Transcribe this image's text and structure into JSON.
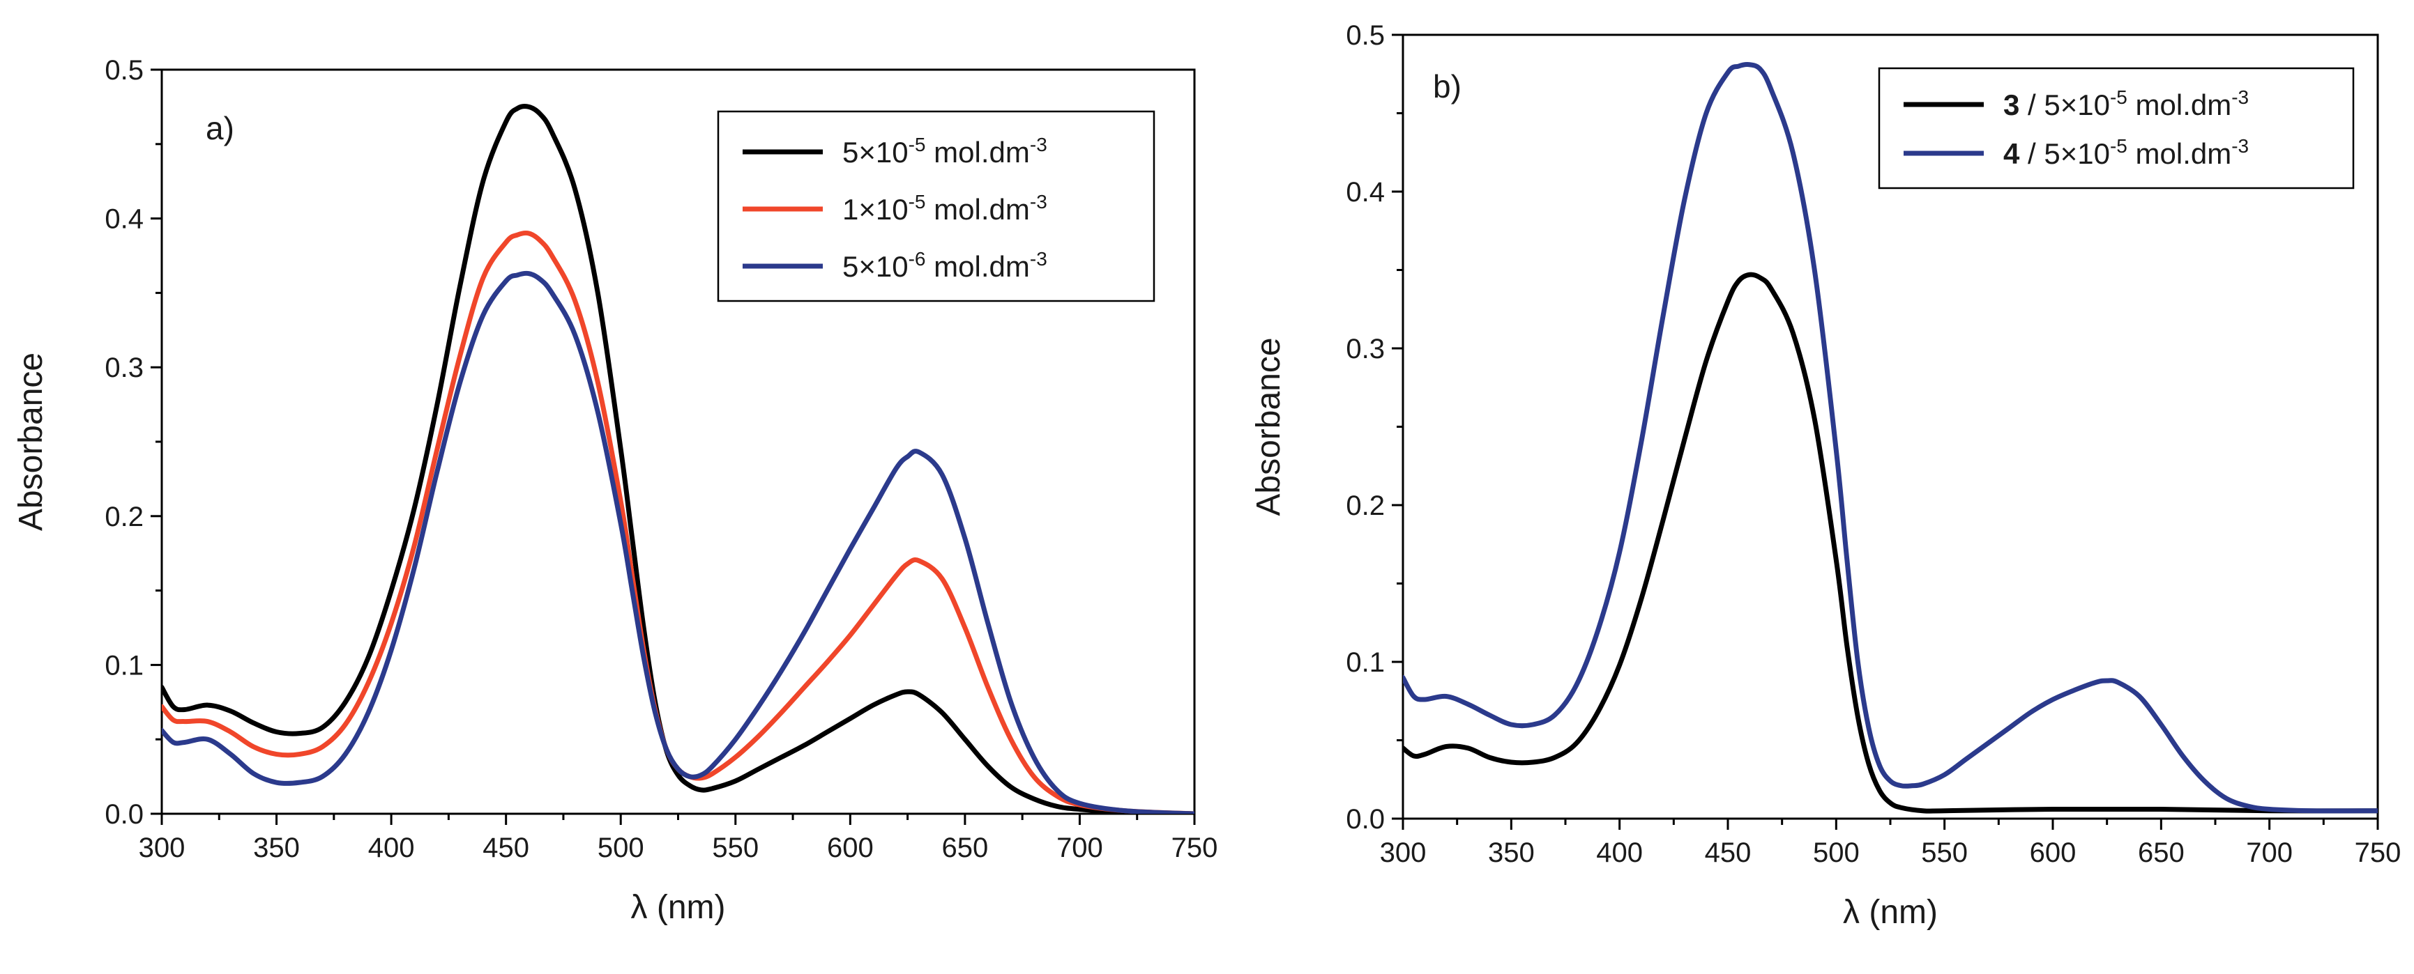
{
  "chart_data": [
    {
      "type": "line",
      "panel_label": "a)",
      "xlabel": "λ (nm)",
      "ylabel": "Absorbance",
      "xlim": [
        300,
        750
      ],
      "ylim": [
        0,
        0.5
      ],
      "xticks": [
        300,
        350,
        400,
        450,
        500,
        550,
        600,
        650,
        700,
        750
      ],
      "yticks": [
        0.0,
        0.1,
        0.2,
        0.3,
        0.4,
        0.5
      ],
      "ytick_labels": [
        "0.0",
        "0.1",
        "0.2",
        "0.3",
        "0.4",
        "0.5"
      ],
      "legend_position": "top-right",
      "series": [
        {
          "name": "5×10-5 mol.dm-3",
          "label_main": "5×10",
          "label_exp": "-5",
          "label_unit": " mol.dm",
          "label_unit_exp": "-3",
          "color": "#000000",
          "x": [
            300,
            305,
            310,
            320,
            330,
            340,
            350,
            360,
            370,
            380,
            390,
            400,
            410,
            420,
            430,
            440,
            450,
            455,
            460,
            465,
            470,
            480,
            490,
            500,
            505,
            510,
            515,
            520,
            525,
            530,
            535,
            540,
            550,
            560,
            570,
            580,
            590,
            600,
            610,
            620,
            625,
            630,
            640,
            650,
            660,
            670,
            680,
            690,
            700,
            720,
            750
          ],
          "y": [
            0.085,
            0.072,
            0.07,
            0.073,
            0.069,
            0.061,
            0.055,
            0.054,
            0.058,
            0.075,
            0.105,
            0.15,
            0.205,
            0.275,
            0.355,
            0.425,
            0.465,
            0.474,
            0.475,
            0.47,
            0.458,
            0.42,
            0.35,
            0.245,
            0.185,
            0.125,
            0.075,
            0.042,
            0.026,
            0.019,
            0.016,
            0.017,
            0.022,
            0.03,
            0.038,
            0.046,
            0.055,
            0.064,
            0.073,
            0.08,
            0.082,
            0.08,
            0.068,
            0.05,
            0.032,
            0.018,
            0.01,
            0.005,
            0.003,
            0.001,
            0.0
          ]
        },
        {
          "name": "1×10-5 mol.dm-3",
          "label_main": "1×10",
          "label_exp": "-5",
          "label_unit": " mol.dm",
          "label_unit_exp": "-3",
          "color": "#f0462a",
          "x": [
            300,
            305,
            310,
            320,
            330,
            340,
            350,
            360,
            370,
            380,
            390,
            400,
            410,
            420,
            430,
            440,
            450,
            455,
            460,
            465,
            470,
            480,
            490,
            500,
            505,
            510,
            515,
            520,
            525,
            530,
            535,
            540,
            550,
            560,
            570,
            580,
            590,
            600,
            610,
            620,
            625,
            630,
            640,
            650,
            660,
            670,
            680,
            690,
            700,
            720,
            750
          ],
          "y": [
            0.072,
            0.063,
            0.062,
            0.062,
            0.055,
            0.045,
            0.04,
            0.04,
            0.045,
            0.06,
            0.088,
            0.128,
            0.18,
            0.245,
            0.308,
            0.36,
            0.384,
            0.389,
            0.39,
            0.385,
            0.375,
            0.345,
            0.29,
            0.21,
            0.16,
            0.11,
            0.07,
            0.043,
            0.03,
            0.025,
            0.024,
            0.027,
            0.038,
            0.052,
            0.068,
            0.085,
            0.102,
            0.12,
            0.14,
            0.16,
            0.168,
            0.17,
            0.158,
            0.125,
            0.085,
            0.05,
            0.025,
            0.012,
            0.006,
            0.002,
            0.0
          ]
        },
        {
          "name": "5×10-6 mol.dm-3",
          "label_main": "5×10",
          "label_exp": "-6",
          "label_unit": " mol.dm",
          "label_unit_exp": "-3",
          "color": "#2b3a8c",
          "x": [
            300,
            305,
            310,
            320,
            330,
            340,
            350,
            360,
            370,
            380,
            390,
            400,
            410,
            420,
            430,
            440,
            450,
            455,
            460,
            465,
            470,
            480,
            490,
            500,
            505,
            510,
            515,
            520,
            525,
            530,
            535,
            540,
            550,
            560,
            570,
            580,
            590,
            600,
            610,
            620,
            625,
            630,
            640,
            650,
            660,
            670,
            680,
            690,
            700,
            720,
            750
          ],
          "y": [
            0.056,
            0.048,
            0.048,
            0.05,
            0.04,
            0.027,
            0.021,
            0.021,
            0.025,
            0.04,
            0.068,
            0.11,
            0.165,
            0.23,
            0.29,
            0.335,
            0.358,
            0.362,
            0.363,
            0.359,
            0.35,
            0.322,
            0.27,
            0.195,
            0.15,
            0.105,
            0.068,
            0.043,
            0.03,
            0.025,
            0.026,
            0.032,
            0.05,
            0.072,
            0.096,
            0.122,
            0.15,
            0.178,
            0.205,
            0.232,
            0.24,
            0.243,
            0.228,
            0.185,
            0.128,
            0.075,
            0.038,
            0.016,
            0.007,
            0.002,
            0.0
          ]
        }
      ]
    },
    {
      "type": "line",
      "panel_label": "b)",
      "xlabel": "λ (nm)",
      "ylabel": "Absorbance",
      "xlim": [
        300,
        750
      ],
      "ylim": [
        0,
        0.5
      ],
      "xticks": [
        300,
        350,
        400,
        450,
        500,
        550,
        600,
        650,
        700,
        750
      ],
      "yticks": [
        0.0,
        0.1,
        0.2,
        0.3,
        0.4,
        0.5
      ],
      "ytick_labels": [
        "0.0",
        "0.1",
        "0.2",
        "0.3",
        "0.4",
        "0.5"
      ],
      "legend_position": "top-right",
      "series": [
        {
          "name": "3 / 5×10-5 mol.dm-3",
          "label_bold": "3",
          "label_main": " / 5×10",
          "label_exp": "-5",
          "label_unit": " mol.dm",
          "label_unit_exp": "-3",
          "color": "#000000",
          "x": [
            300,
            305,
            310,
            320,
            330,
            340,
            350,
            360,
            370,
            380,
            390,
            400,
            410,
            420,
            430,
            440,
            450,
            455,
            460,
            465,
            470,
            480,
            490,
            500,
            505,
            510,
            515,
            520,
            525,
            530,
            540,
            550,
            600,
            650,
            700,
            750
          ],
          "y": [
            0.045,
            0.04,
            0.041,
            0.046,
            0.045,
            0.039,
            0.036,
            0.036,
            0.039,
            0.048,
            0.068,
            0.098,
            0.14,
            0.19,
            0.242,
            0.292,
            0.33,
            0.343,
            0.347,
            0.345,
            0.338,
            0.31,
            0.255,
            0.165,
            0.11,
            0.065,
            0.035,
            0.018,
            0.01,
            0.007,
            0.005,
            0.005,
            0.006,
            0.006,
            0.005,
            0.005
          ]
        },
        {
          "name": "4 / 5×10-5 mol.dm-3",
          "label_bold": "4",
          "label_main": " / 5×10",
          "label_exp": "-5",
          "label_unit": " mol.dm",
          "label_unit_exp": "-3",
          "color": "#2b3a8c",
          "x": [
            300,
            305,
            310,
            320,
            330,
            340,
            350,
            360,
            370,
            380,
            390,
            400,
            410,
            420,
            430,
            440,
            450,
            455,
            460,
            465,
            470,
            480,
            490,
            500,
            505,
            510,
            515,
            520,
            525,
            530,
            535,
            540,
            550,
            560,
            570,
            580,
            590,
            600,
            610,
            620,
            625,
            630,
            640,
            650,
            660,
            670,
            680,
            690,
            700,
            720,
            750
          ],
          "y": [
            0.09,
            0.078,
            0.076,
            0.078,
            0.073,
            0.066,
            0.06,
            0.06,
            0.066,
            0.085,
            0.12,
            0.17,
            0.24,
            0.32,
            0.395,
            0.45,
            0.476,
            0.48,
            0.481,
            0.478,
            0.465,
            0.425,
            0.35,
            0.235,
            0.165,
            0.1,
            0.058,
            0.034,
            0.024,
            0.021,
            0.021,
            0.022,
            0.028,
            0.038,
            0.048,
            0.058,
            0.068,
            0.076,
            0.082,
            0.087,
            0.088,
            0.087,
            0.078,
            0.06,
            0.04,
            0.024,
            0.013,
            0.008,
            0.006,
            0.005,
            0.005
          ]
        }
      ]
    }
  ]
}
